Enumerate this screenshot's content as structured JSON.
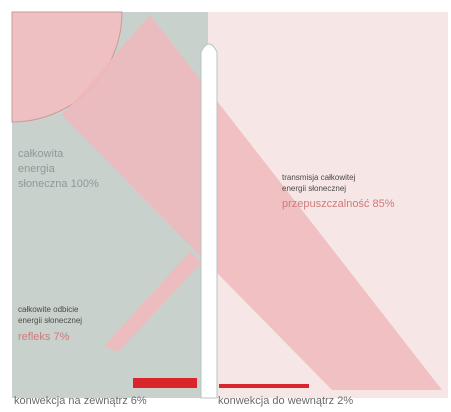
{
  "labels": {
    "total": [
      "całkowita",
      "energia",
      "słoneczna 100%"
    ],
    "transmission": [
      "transmisja całkowitej",
      "energii słonecznej"
    ],
    "transmittance": "przepuszczalność 85%",
    "reflection": [
      "całkowite odbicie",
      "energii słonecznej"
    ],
    "reflex": "refleks 7%",
    "convection_out": "konwekcja na zewnątrz 6%",
    "convection_in": "konwekcja do wewnątrz 2%"
  }
}
